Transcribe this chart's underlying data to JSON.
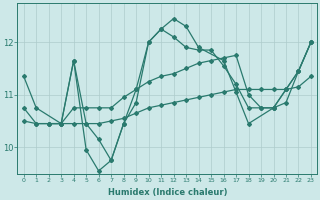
{
  "xlabel": "Humidex (Indice chaleur)",
  "x_values": [
    0,
    1,
    2,
    3,
    4,
    5,
    6,
    7,
    8,
    9,
    10,
    11,
    12,
    13,
    14,
    15,
    16,
    17,
    18,
    19,
    20,
    21,
    22,
    23
  ],
  "line1": [
    11.35,
    10.75,
    10.45,
    11.65,
    9.95,
    9.55,
    9.75,
    10.45,
    10.85,
    12.0,
    12.25,
    12.45,
    12.3,
    11.9,
    11.65,
    11.05,
    10.45,
    10.75,
    11.1,
    11.45,
    12.0
  ],
  "line1_x": [
    0,
    1,
    3,
    4,
    5,
    6,
    7,
    8,
    9,
    10,
    11,
    12,
    13,
    14,
    16,
    17,
    18,
    20,
    21,
    22,
    23
  ],
  "line2_x": [
    0,
    1,
    2,
    3,
    4,
    5,
    6,
    7,
    8,
    9,
    10,
    11,
    12,
    13,
    14,
    15,
    16,
    17,
    18,
    19,
    20,
    21,
    22,
    23
  ],
  "line2": [
    10.75,
    10.45,
    10.45,
    10.45,
    10.75,
    10.75,
    10.75,
    10.75,
    10.95,
    11.1,
    11.25,
    11.35,
    11.4,
    11.5,
    11.6,
    11.65,
    11.7,
    11.75,
    11.0,
    10.75,
    10.75,
    10.85,
    11.45,
    12.0
  ],
  "line3_x": [
    0,
    1,
    2,
    3,
    4,
    5,
    6,
    7,
    8,
    9,
    10,
    11,
    12,
    13,
    14,
    15,
    16,
    17,
    18,
    19,
    20,
    21,
    22,
    23
  ],
  "line3": [
    10.5,
    10.45,
    10.45,
    10.45,
    10.45,
    10.45,
    10.45,
    10.5,
    10.55,
    10.65,
    10.75,
    10.8,
    10.85,
    10.9,
    10.95,
    11.0,
    11.05,
    11.1,
    11.1,
    11.1,
    11.1,
    11.1,
    11.15,
    11.35
  ],
  "line4_x": [
    2,
    3,
    4,
    5,
    6,
    7,
    8,
    9,
    10,
    11,
    12,
    13,
    14,
    15,
    16,
    17,
    18,
    19,
    20,
    21,
    22,
    23
  ],
  "line4": [
    10.45,
    10.45,
    11.65,
    10.45,
    10.15,
    9.75,
    10.45,
    11.1,
    12.0,
    12.25,
    12.1,
    11.9,
    11.85,
    11.85,
    11.55,
    11.2,
    10.75,
    10.75,
    10.75,
    11.1,
    11.45,
    12.0
  ],
  "line_color": "#2a7a6e",
  "bg_color": "#cde8e8",
  "grid_color": "#aecccc",
  "ylim": [
    9.5,
    12.75
  ],
  "yticks": [
    10,
    11,
    12
  ],
  "xlim": [
    -0.5,
    23.5
  ],
  "marker": "D",
  "markersize": 2.0,
  "linewidth": 0.9
}
